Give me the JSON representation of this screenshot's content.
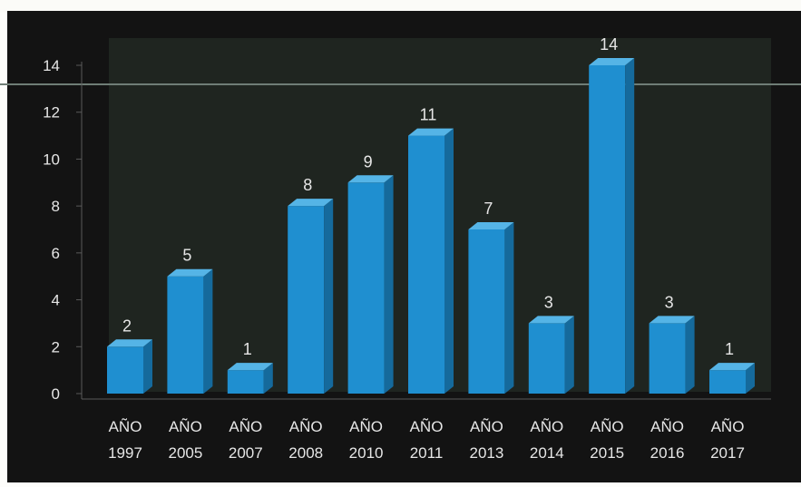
{
  "chart_data": {
    "type": "bar",
    "style": "3d-column",
    "categories": [
      "AÑO 1997",
      "AÑO 2005",
      "AÑO 2007",
      "AÑO 2008",
      "AÑO 2010",
      "AÑO 2011",
      "AÑO 2013",
      "AÑO 2014",
      "AÑO 2015",
      "AÑO 2016",
      "AÑO 2017"
    ],
    "category_lines": [
      [
        "AÑO",
        "1997"
      ],
      [
        "AÑO",
        "2005"
      ],
      [
        "AÑO",
        "2007"
      ],
      [
        "AÑO",
        "2008"
      ],
      [
        "AÑO",
        "2010"
      ],
      [
        "AÑO",
        "2011"
      ],
      [
        "AÑO",
        "2013"
      ],
      [
        "AÑO",
        "2014"
      ],
      [
        "AÑO",
        "2015"
      ],
      [
        "AÑO",
        "2016"
      ],
      [
        "AÑO",
        "2017"
      ]
    ],
    "values": [
      2,
      5,
      1,
      8,
      9,
      11,
      7,
      3,
      14,
      3,
      1
    ],
    "data_labels": [
      "2",
      "5",
      "1",
      "8",
      "9",
      "11",
      "7",
      "3",
      "14",
      "3",
      "1"
    ],
    "ylim": [
      0,
      14
    ],
    "yticks": [
      0,
      2,
      4,
      6,
      8,
      10,
      12,
      14
    ],
    "grid": false,
    "legend": "none",
    "colors": {
      "background": "#131313",
      "plot_area": "#1f2520",
      "bar_front": "#1f8fd0",
      "bar_side": "#156a9c",
      "bar_top": "#55b4e6",
      "text": "#e6e6e6",
      "axis": "#5a5a5a"
    }
  }
}
